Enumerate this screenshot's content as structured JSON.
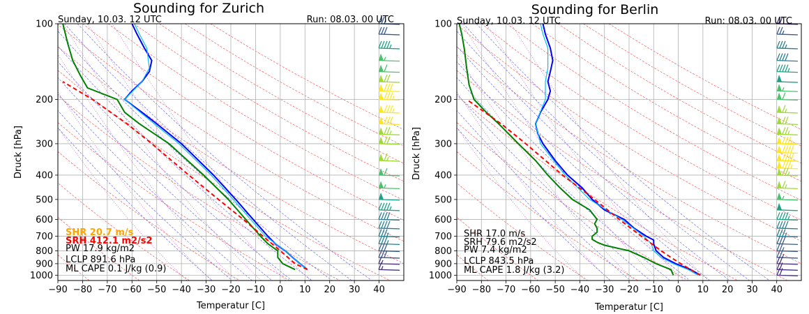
{
  "chart_data": [
    {
      "type": "line",
      "title": "Sounding for Zurich",
      "subtitle_left": "Sunday, 10.03. 12 UTC",
      "subtitle_right": "Run: 08.03. 00 UTC",
      "xlabel": "Temperatur [C]",
      "ylabel": "Druck [hPa]",
      "xlim": [
        -90,
        50
      ],
      "ylim": [
        1050,
        100
      ],
      "y_scale": "log",
      "grid": true,
      "x_ticks": [
        -90,
        -80,
        -70,
        -60,
        -50,
        -40,
        -30,
        -20,
        -10,
        0,
        10,
        20,
        30,
        40
      ],
      "y_ticks": [
        100,
        200,
        300,
        400,
        500,
        600,
        700,
        800,
        900,
        1000
      ],
      "annotations": [
        {
          "text": "SHR 20.7 m/s",
          "color": "#ffa500",
          "bold": true
        },
        {
          "text": "SRH 412.1 m2/s2",
          "color": "#ff0000",
          "bold": true
        },
        {
          "text": "PW 17.9 kg/m2",
          "color": "#000000",
          "bold": false
        },
        {
          "text": "LCLP 891.6 hPa",
          "color": "#000000",
          "bold": false
        },
        {
          "text": "ML CAPE 0.1 J/kg (0.9)",
          "color": "#000000",
          "bold": false
        }
      ],
      "series": [
        {
          "role": "temperature",
          "color": "#0000ff",
          "p": [
            950,
            900,
            850,
            800,
            750,
            700,
            600,
            500,
            400,
            300,
            250,
            225,
            200,
            185,
            170,
            155,
            140,
            125,
            110,
            100
          ],
          "t": [
            11,
            8,
            5,
            2,
            -2,
            -5,
            -11,
            -18,
            -27,
            -40,
            -50,
            -56,
            -63,
            -60,
            -56,
            -53,
            -52,
            -55,
            -58,
            -60
          ]
        },
        {
          "role": "temperature-ref",
          "color": "#00bfff",
          "p": [
            950,
            900,
            800,
            700,
            600,
            500,
            400,
            300,
            250,
            200,
            170,
            150,
            125,
            110,
            100
          ],
          "t": [
            11,
            8,
            2,
            -6,
            -12,
            -19,
            -28,
            -41,
            -51,
            -63,
            -56,
            -53,
            -54,
            -57,
            -59
          ]
        },
        {
          "role": "dewpoint",
          "color": "#008000",
          "p": [
            950,
            900,
            850,
            800,
            750,
            700,
            600,
            500,
            400,
            300,
            250,
            225,
            200,
            180,
            160,
            140,
            120,
            100
          ],
          "t": [
            6,
            1,
            -1,
            -1,
            -5,
            -8,
            -14,
            -21,
            -31,
            -45,
            -57,
            -63,
            -66,
            -78,
            -81,
            -84,
            -86,
            -88
          ]
        },
        {
          "role": "parcel",
          "color": "#ff0000",
          "dashed": true,
          "p": [
            950,
            900,
            800,
            700,
            600,
            500,
            400,
            300,
            250,
            200,
            170
          ],
          "t": [
            11,
            6,
            0,
            -7,
            -15,
            -25,
            -37,
            -52,
            -62,
            -76,
            -88
          ]
        }
      ],
      "wind_barb_levels_hPa": [
        100,
        110,
        125,
        140,
        155,
        170,
        185,
        200,
        225,
        250,
        275,
        300,
        350,
        400,
        450,
        500,
        550,
        600,
        650,
        700,
        750,
        800,
        850,
        900,
        950
      ],
      "wind_speed_kt": [
        25,
        30,
        45,
        55,
        60,
        70,
        80,
        85,
        85,
        80,
        75,
        70,
        65,
        60,
        55,
        50,
        45,
        40,
        40,
        35,
        35,
        30,
        30,
        15,
        15
      ]
    },
    {
      "type": "line",
      "title": "Sounding for Berlin",
      "subtitle_left": "Sunday, 10.03. 12 UTC",
      "subtitle_right": "Run: 08.03. 00 UTC",
      "xlabel": "Temperatur [C]",
      "ylabel": "Druck [hPa]",
      "xlim": [
        -90,
        50
      ],
      "ylim": [
        1050,
        100
      ],
      "y_scale": "log",
      "grid": true,
      "x_ticks": [
        -90,
        -80,
        -70,
        -60,
        -50,
        -40,
        -30,
        -20,
        -10,
        0,
        10,
        20,
        30,
        40
      ],
      "y_ticks": [
        100,
        200,
        300,
        400,
        500,
        600,
        700,
        800,
        900,
        1000
      ],
      "annotations": [
        {
          "text": "SHR 17.0 m/s",
          "color": "#000000",
          "bold": false
        },
        {
          "text": "SRH 79.6 m2/s2",
          "color": "#000000",
          "bold": false
        },
        {
          "text": "PW 7.4 kg/m2",
          "color": "#000000",
          "bold": false
        },
        {
          "text": "LCLP 843.5 hPa",
          "color": "#000000",
          "bold": false
        },
        {
          "text": "ML CAPE 1.8 J/kg (3.2)",
          "color": "#000000",
          "bold": false
        }
      ],
      "series": [
        {
          "role": "temperature",
          "color": "#0000ff",
          "p": [
            1000,
            950,
            900,
            850,
            800,
            750,
            725,
            700,
            650,
            600,
            550,
            500,
            450,
            400,
            350,
            300,
            275,
            250,
            225,
            200,
            185,
            170,
            155,
            140,
            125,
            110,
            100
          ],
          "t": [
            9,
            5,
            -1,
            -6,
            -9,
            -10,
            -10,
            -13,
            -18,
            -22,
            -30,
            -35,
            -39,
            -45,
            -50,
            -55,
            -57,
            -58,
            -56,
            -53,
            -52,
            -53,
            -52,
            -51,
            -52,
            -54,
            -55
          ]
        },
        {
          "role": "temperature-ref",
          "color": "#00bfff",
          "p": [
            1000,
            950,
            900,
            850,
            800,
            750,
            700,
            600,
            500,
            400,
            300,
            250,
            200,
            170,
            150,
            125,
            110,
            100
          ],
          "t": [
            8,
            4,
            -2,
            -7,
            -10,
            -11,
            -14,
            -23,
            -36,
            -46,
            -56,
            -58,
            -54,
            -54,
            -53,
            -53,
            -55,
            -56
          ]
        },
        {
          "role": "dewpoint",
          "color": "#008000",
          "p": [
            1000,
            950,
            900,
            850,
            800,
            780,
            760,
            740,
            720,
            700,
            675,
            650,
            625,
            600,
            550,
            500,
            450,
            400,
            350,
            300,
            250,
            225,
            200,
            175,
            150,
            125,
            110,
            100
          ],
          "t": [
            -2,
            -3,
            -9,
            -14,
            -20,
            -25,
            -30,
            -33,
            -35,
            -35,
            -33,
            -33,
            -34,
            -33,
            -36,
            -43,
            -48,
            -53,
            -58,
            -65,
            -73,
            -78,
            -83,
            -85,
            -86,
            -87,
            -88,
            -89
          ]
        },
        {
          "role": "parcel",
          "color": "#ff0000",
          "dashed": true,
          "p": [
            1000,
            950,
            900,
            850,
            800,
            700,
            600,
            500,
            400,
            300,
            250,
            200
          ],
          "t": [
            9,
            5,
            1,
            -3,
            -7,
            -15,
            -24,
            -34,
            -47,
            -62,
            -72,
            -86
          ]
        }
      ],
      "wind_barb_levels_hPa": [
        100,
        110,
        125,
        140,
        155,
        170,
        185,
        200,
        225,
        250,
        275,
        300,
        325,
        350,
        375,
        400,
        450,
        500,
        550,
        600,
        650,
        700,
        750,
        800,
        850,
        900,
        950,
        1000
      ],
      "wind_speed_kt": [
        20,
        25,
        35,
        40,
        45,
        50,
        55,
        60,
        65,
        70,
        75,
        85,
        90,
        90,
        85,
        75,
        65,
        55,
        50,
        45,
        40,
        35,
        30,
        25,
        25,
        20,
        20,
        20
      ]
    }
  ]
}
